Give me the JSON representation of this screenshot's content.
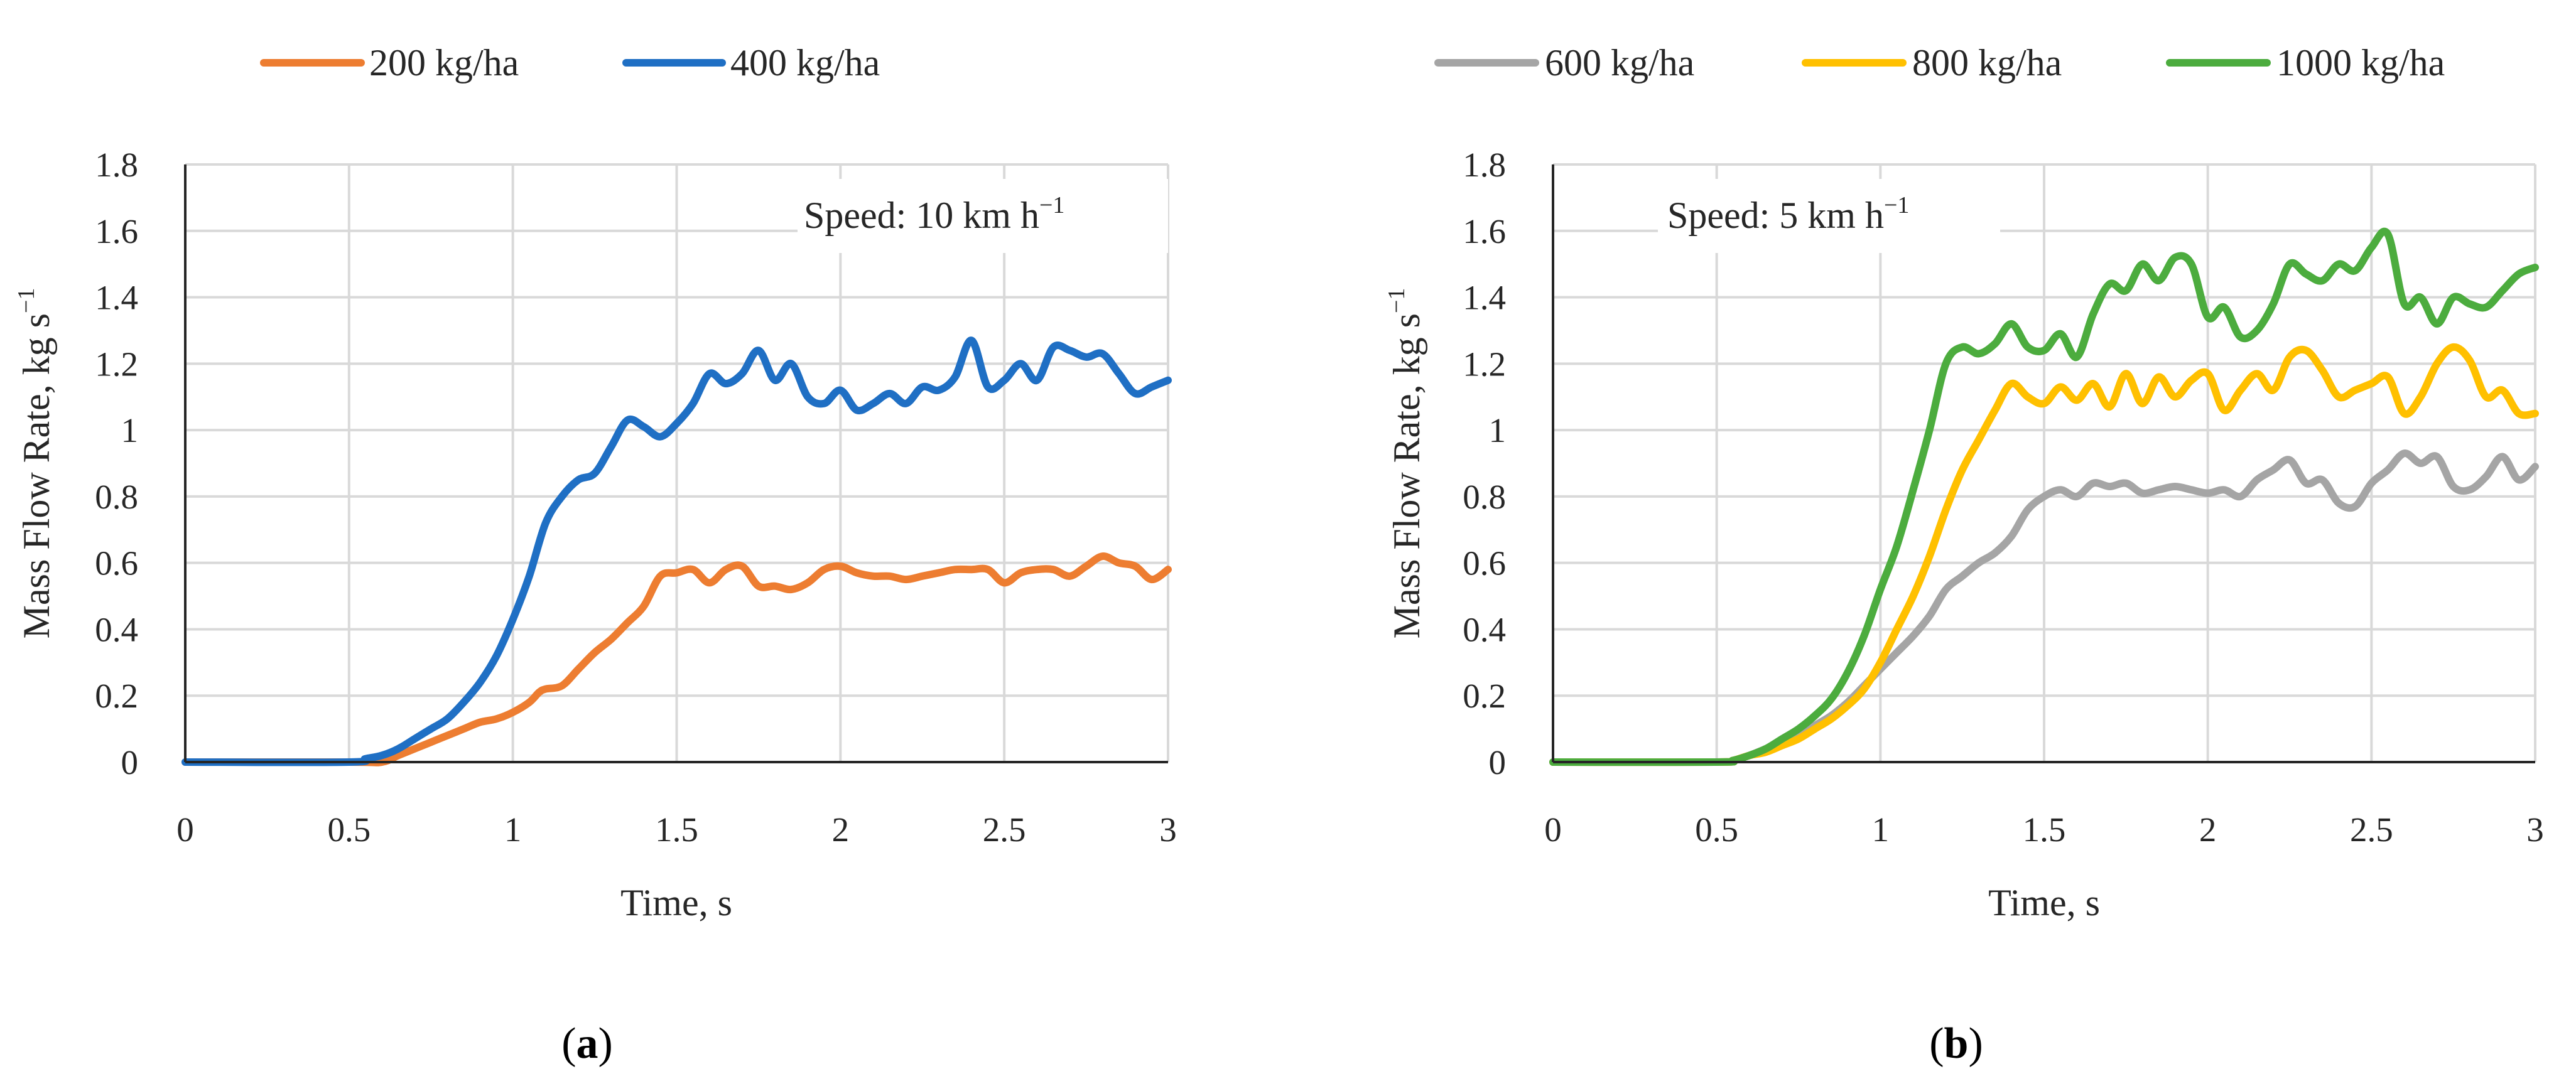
{
  "chart_data": [
    {
      "type": "line",
      "panel": "a",
      "caption_letter": "a",
      "xlabel": "Time, s",
      "ylabel": "Mass Flow Rate, kg s",
      "ylabel_sup": "−1",
      "annotation": "Speed: 10 km h",
      "annotation_sup": "−1",
      "xlim": [
        0,
        3
      ],
      "ylim": [
        0,
        1.8
      ],
      "xticks": [
        0,
        0.5,
        1,
        1.5,
        2,
        2.5,
        3
      ],
      "xtick_labels": [
        "0",
        "0.5",
        "1",
        "1.5",
        "2",
        "2.5",
        "3"
      ],
      "yticks": [
        0,
        0.2,
        0.4,
        0.6,
        0.8,
        1,
        1.2,
        1.4,
        1.6,
        1.8
      ],
      "ytick_labels": [
        "0",
        "0.2",
        "0.4",
        "0.6",
        "0.8",
        "1",
        "1.2",
        "1.4",
        "1.6",
        "1.8"
      ],
      "series": [
        {
          "name": "200 kg/ha",
          "color": "#ED7D31",
          "x": [
            0,
            0.5,
            0.6,
            0.65,
            0.7,
            0.75,
            0.8,
            0.85,
            0.9,
            0.95,
            1.0,
            1.05,
            1.08,
            1.1,
            1.15,
            1.2,
            1.25,
            1.3,
            1.35,
            1.4,
            1.45,
            1.5,
            1.55,
            1.6,
            1.65,
            1.7,
            1.75,
            1.8,
            1.85,
            1.9,
            1.95,
            2.0,
            2.05,
            2.1,
            2.15,
            2.2,
            2.25,
            2.3,
            2.35,
            2.4,
            2.45,
            2.5,
            2.55,
            2.6,
            2.65,
            2.7,
            2.75,
            2.8,
            2.85,
            2.9,
            2.95,
            3.0
          ],
          "y": [
            0,
            0,
            0.0,
            0.02,
            0.04,
            0.06,
            0.08,
            0.1,
            0.12,
            0.13,
            0.15,
            0.18,
            0.21,
            0.22,
            0.23,
            0.28,
            0.33,
            0.37,
            0.42,
            0.47,
            0.56,
            0.57,
            0.58,
            0.54,
            0.58,
            0.59,
            0.53,
            0.53,
            0.52,
            0.54,
            0.58,
            0.59,
            0.57,
            0.56,
            0.56,
            0.55,
            0.56,
            0.57,
            0.58,
            0.58,
            0.58,
            0.54,
            0.57,
            0.58,
            0.58,
            0.56,
            0.59,
            0.62,
            0.6,
            0.59,
            0.55,
            0.58
          ]
        },
        {
          "name": "400 kg/ha",
          "color": "#1F6FC4",
          "x": [
            0,
            0.5,
            0.55,
            0.6,
            0.65,
            0.7,
            0.75,
            0.8,
            0.85,
            0.9,
            0.95,
            1.0,
            1.05,
            1.1,
            1.15,
            1.2,
            1.25,
            1.3,
            1.35,
            1.4,
            1.45,
            1.5,
            1.55,
            1.6,
            1.65,
            1.7,
            1.75,
            1.8,
            1.85,
            1.9,
            1.95,
            2.0,
            2.05,
            2.1,
            2.15,
            2.2,
            2.25,
            2.3,
            2.35,
            2.4,
            2.45,
            2.5,
            2.55,
            2.6,
            2.65,
            2.7,
            2.75,
            2.8,
            2.85,
            2.9,
            2.95,
            3.0
          ],
          "y": [
            0,
            0,
            0.01,
            0.02,
            0.04,
            0.07,
            0.1,
            0.13,
            0.18,
            0.24,
            0.32,
            0.43,
            0.56,
            0.72,
            0.8,
            0.85,
            0.87,
            0.95,
            1.03,
            1.01,
            0.98,
            1.02,
            1.08,
            1.17,
            1.14,
            1.17,
            1.24,
            1.15,
            1.2,
            1.1,
            1.08,
            1.12,
            1.06,
            1.08,
            1.11,
            1.08,
            1.13,
            1.12,
            1.16,
            1.27,
            1.13,
            1.15,
            1.2,
            1.15,
            1.25,
            1.24,
            1.22,
            1.23,
            1.17,
            1.11,
            1.13,
            1.15
          ]
        }
      ]
    },
    {
      "type": "line",
      "panel": "b",
      "caption_letter": "b",
      "xlabel": "Time, s",
      "ylabel": "Mass Flow Rate, kg s",
      "ylabel_sup": "−1",
      "annotation": "Speed: 5 km h",
      "annotation_sup": "−1",
      "xlim": [
        0,
        3
      ],
      "ylim": [
        0,
        1.8
      ],
      "xticks": [
        0,
        0.5,
        1,
        1.5,
        2,
        2.5,
        3
      ],
      "xtick_labels": [
        "0",
        "0.5",
        "1",
        "1.5",
        "2",
        "2.5",
        "3"
      ],
      "yticks": [
        0,
        0.2,
        0.4,
        0.6,
        0.8,
        1,
        1.2,
        1.4,
        1.6,
        1.8
      ],
      "ytick_labels": [
        "0",
        "0.2",
        "0.4",
        "0.6",
        "0.8",
        "1",
        "1.2",
        "1.4",
        "1.6",
        "1.8"
      ],
      "series": [
        {
          "name": "600 kg/ha",
          "color": "#A5A5A5",
          "x": [
            0,
            0.5,
            0.55,
            0.6,
            0.65,
            0.7,
            0.75,
            0.8,
            0.85,
            0.9,
            0.95,
            1.0,
            1.05,
            1.1,
            1.15,
            1.2,
            1.25,
            1.3,
            1.35,
            1.4,
            1.45,
            1.5,
            1.55,
            1.6,
            1.65,
            1.7,
            1.75,
            1.8,
            1.85,
            1.9,
            1.95,
            2.0,
            2.05,
            2.1,
            2.15,
            2.2,
            2.25,
            2.3,
            2.35,
            2.4,
            2.45,
            2.5,
            2.55,
            2.6,
            2.65,
            2.7,
            2.75,
            2.8,
            2.85,
            2.9,
            2.95,
            3.0
          ],
          "y": [
            0,
            0,
            0.005,
            0.02,
            0.04,
            0.06,
            0.08,
            0.11,
            0.14,
            0.18,
            0.23,
            0.28,
            0.33,
            0.38,
            0.44,
            0.52,
            0.56,
            0.6,
            0.63,
            0.68,
            0.76,
            0.8,
            0.82,
            0.8,
            0.84,
            0.83,
            0.84,
            0.81,
            0.82,
            0.83,
            0.82,
            0.81,
            0.82,
            0.8,
            0.85,
            0.88,
            0.91,
            0.84,
            0.85,
            0.78,
            0.77,
            0.84,
            0.88,
            0.93,
            0.9,
            0.92,
            0.83,
            0.82,
            0.86,
            0.92,
            0.85,
            0.89
          ]
        },
        {
          "name": "800 kg/ha",
          "color": "#FFC000",
          "x": [
            0,
            0.5,
            0.55,
            0.6,
            0.65,
            0.7,
            0.75,
            0.8,
            0.85,
            0.9,
            0.95,
            1.0,
            1.05,
            1.1,
            1.15,
            1.2,
            1.25,
            1.3,
            1.35,
            1.4,
            1.45,
            1.5,
            1.55,
            1.6,
            1.65,
            1.7,
            1.75,
            1.8,
            1.85,
            1.9,
            1.95,
            2.0,
            2.05,
            2.1,
            2.15,
            2.2,
            2.25,
            2.3,
            2.35,
            2.4,
            2.45,
            2.5,
            2.55,
            2.6,
            2.65,
            2.7,
            2.75,
            2.8,
            2.85,
            2.9,
            2.95,
            3.0
          ],
          "y": [
            0,
            0,
            0.005,
            0.02,
            0.03,
            0.05,
            0.07,
            0.1,
            0.13,
            0.17,
            0.22,
            0.3,
            0.4,
            0.5,
            0.62,
            0.76,
            0.88,
            0.97,
            1.06,
            1.14,
            1.1,
            1.08,
            1.13,
            1.09,
            1.14,
            1.07,
            1.17,
            1.08,
            1.16,
            1.1,
            1.15,
            1.17,
            1.06,
            1.12,
            1.17,
            1.12,
            1.22,
            1.24,
            1.18,
            1.1,
            1.12,
            1.14,
            1.16,
            1.05,
            1.1,
            1.2,
            1.25,
            1.21,
            1.1,
            1.12,
            1.05,
            1.05
          ]
        },
        {
          "name": "1000 kg/ha",
          "color": "#4CAC3E",
          "x": [
            0,
            0.5,
            0.55,
            0.6,
            0.65,
            0.7,
            0.75,
            0.8,
            0.85,
            0.9,
            0.95,
            1.0,
            1.05,
            1.1,
            1.15,
            1.2,
            1.25,
            1.3,
            1.35,
            1.4,
            1.45,
            1.5,
            1.55,
            1.6,
            1.65,
            1.7,
            1.75,
            1.8,
            1.85,
            1.9,
            1.95,
            2.0,
            2.05,
            2.1,
            2.15,
            2.2,
            2.25,
            2.3,
            2.35,
            2.4,
            2.45,
            2.5,
            2.55,
            2.6,
            2.65,
            2.7,
            2.75,
            2.8,
            2.85,
            2.9,
            2.95,
            3.0
          ],
          "y": [
            0,
            0,
            0.005,
            0.02,
            0.04,
            0.07,
            0.1,
            0.14,
            0.19,
            0.27,
            0.38,
            0.52,
            0.65,
            0.82,
            1.0,
            1.2,
            1.25,
            1.23,
            1.26,
            1.32,
            1.25,
            1.24,
            1.29,
            1.22,
            1.35,
            1.44,
            1.42,
            1.5,
            1.45,
            1.52,
            1.5,
            1.34,
            1.37,
            1.28,
            1.3,
            1.38,
            1.5,
            1.47,
            1.45,
            1.5,
            1.48,
            1.55,
            1.59,
            1.38,
            1.4,
            1.32,
            1.4,
            1.38,
            1.37,
            1.42,
            1.47,
            1.49
          ]
        }
      ]
    }
  ]
}
